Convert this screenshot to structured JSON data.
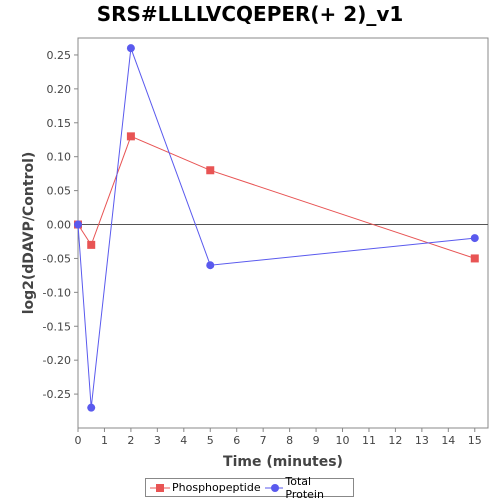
{
  "chart_data": {
    "type": "line",
    "title": "SRS#LLLLVCQEPER(+ 2)_v1",
    "xlabel": "Time (minutes)",
    "ylabel": "log2(dDAVP/Control)",
    "xlim": [
      0,
      15.5
    ],
    "ylim": [
      -0.3,
      0.275
    ],
    "x_ticks": [
      0,
      1,
      2,
      3,
      4,
      5,
      6,
      7,
      8,
      9,
      10,
      11,
      12,
      13,
      14,
      15
    ],
    "y_ticks": [
      0.25,
      0.2,
      0.15,
      0.1,
      0.05,
      0.0,
      -0.05,
      -0.1,
      -0.15,
      -0.2,
      -0.25
    ],
    "y_tick_labels": [
      "0.25",
      "0.20",
      "0.15",
      "0.10",
      "0.05",
      "0.00",
      "-0.05",
      "-0.10",
      "-0.15",
      "-0.20",
      "-0.25"
    ],
    "zero_line": true,
    "grid": false,
    "legend_position": "bottom",
    "series": [
      {
        "name": "Phosphopeptide",
        "color": "#e85454",
        "marker": "square",
        "x": [
          0,
          0.5,
          2,
          5,
          15
        ],
        "y": [
          0.0,
          -0.03,
          0.13,
          0.08,
          -0.05
        ]
      },
      {
        "name": "Total Protein",
        "color": "#5a5aee",
        "marker": "circle",
        "x": [
          0,
          0.5,
          2,
          5,
          15
        ],
        "y": [
          0.0,
          -0.27,
          0.26,
          -0.06,
          -0.02
        ]
      }
    ]
  }
}
